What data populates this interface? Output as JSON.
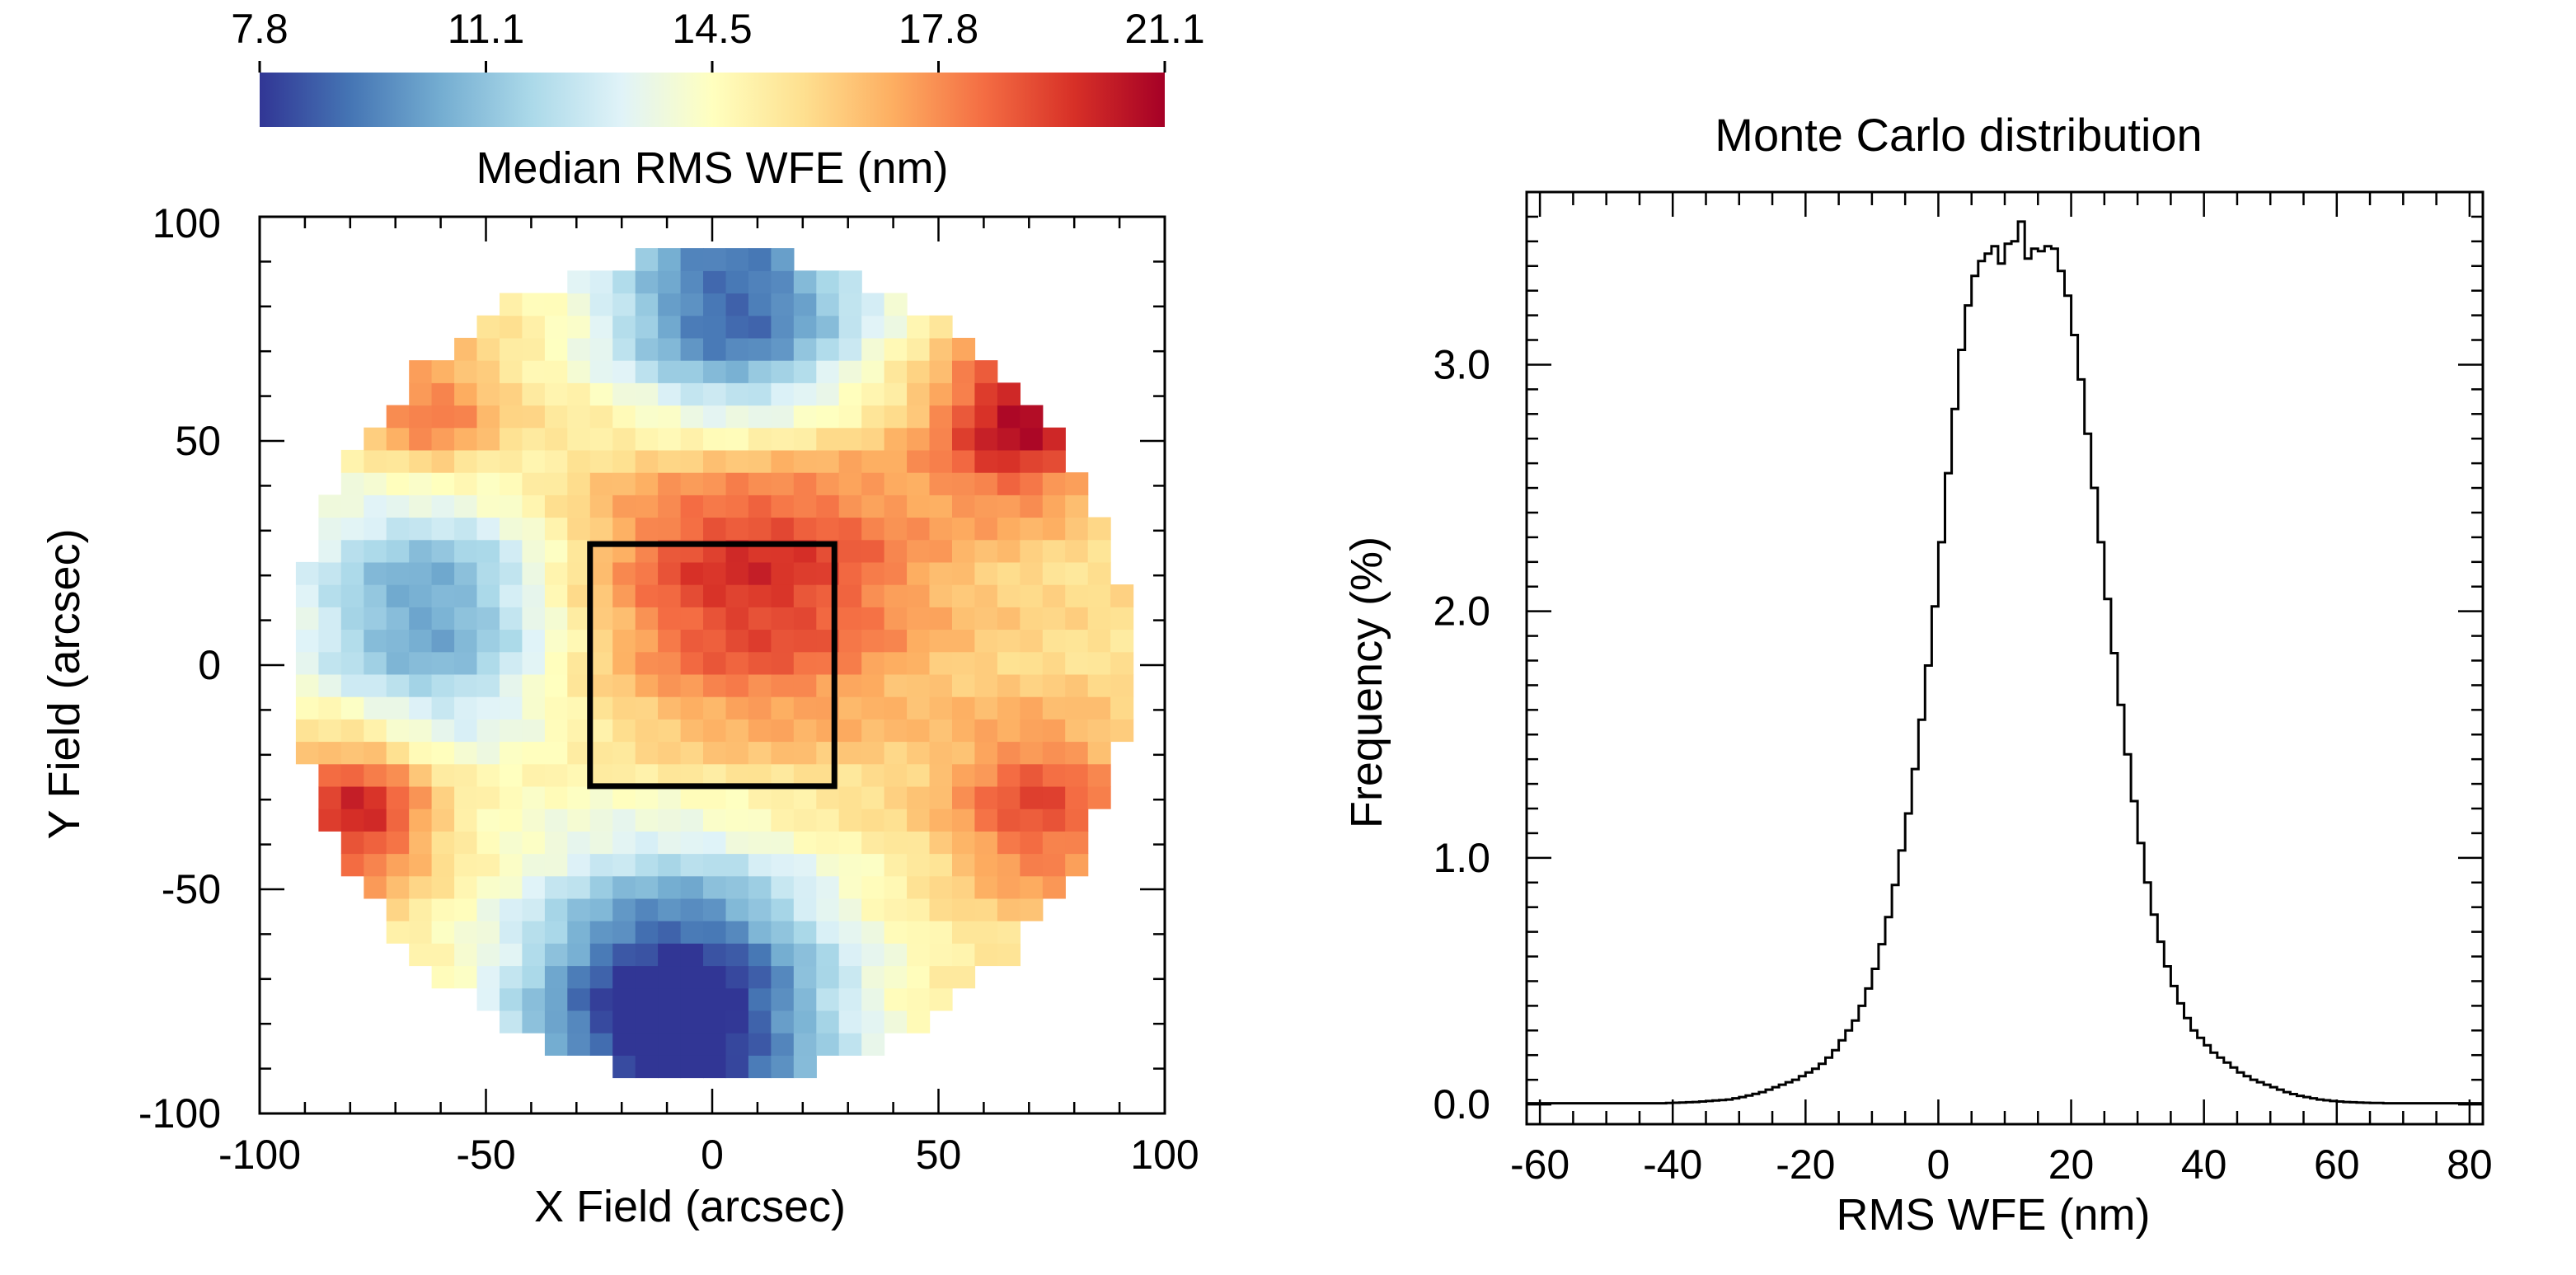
{
  "chart_data": [
    {
      "type": "heatmap",
      "title": "",
      "colorbar": {
        "label": "Median RMS WFE (nm)",
        "ticks": [
          "7.8",
          "11.1",
          "14.5",
          "17.8",
          "21.1"
        ],
        "range": [
          7.8,
          21.1
        ],
        "colormap": "RdYlBu_r",
        "colors": [
          "#313695",
          "#4575b4",
          "#74add1",
          "#abd9e9",
          "#e0f3f8",
          "#ffffbf",
          "#fee090",
          "#fdae61",
          "#f46d43",
          "#d73027",
          "#a50026"
        ]
      },
      "xlabel": "X Field (arcsec)",
      "ylabel": "Y Field (arcsec)",
      "xlim": [
        -100,
        100
      ],
      "ylim": [
        -100,
        100
      ],
      "xticks": [
        "-100",
        "-50",
        "0",
        "50",
        "100"
      ],
      "yticks": [
        "-100",
        "-50",
        "0",
        "50",
        "100"
      ],
      "field_radius_arcsec": 92,
      "cell_size_arcsec": 5,
      "overlay_box": {
        "x": [
          -27,
          27
        ],
        "y": [
          -27,
          27
        ]
      },
      "features": [
        {
          "label": "top cool region",
          "x": 5,
          "y": 78,
          "sigma": 22,
          "delta": -7.5
        },
        {
          "label": "bottom cool region",
          "x": -8,
          "y": -78,
          "sigma": 26,
          "delta": -9
        },
        {
          "label": "left cool region",
          "x": -62,
          "y": 12,
          "sigma": 22,
          "delta": -5.5
        },
        {
          "label": "central hot region",
          "x": 8,
          "y": 24,
          "sigma": 28,
          "delta": 4.5
        },
        {
          "label": "upper-right hot region",
          "x": 68,
          "y": 55,
          "sigma": 13,
          "delta": 5
        },
        {
          "label": "upper-left hot region",
          "x": -62,
          "y": 55,
          "sigma": 11,
          "delta": 3.2
        },
        {
          "label": "lower-left hot region",
          "x": -78,
          "y": -32,
          "sigma": 12,
          "delta": 5
        },
        {
          "label": "lower-right hot region",
          "x": 72,
          "y": -32,
          "sigma": 14,
          "delta": 3.5
        }
      ]
    },
    {
      "type": "bar",
      "style": "step-histogram",
      "title": "Monte Carlo distribution",
      "xlabel": "RMS WFE (nm)",
      "ylabel": "Frequency (%)",
      "xlim": [
        -62,
        82
      ],
      "ylim": [
        -0.08,
        3.7
      ],
      "xticks": [
        -60,
        -40,
        -20,
        0,
        20,
        40,
        60,
        80
      ],
      "yticks": [
        0.0,
        1.0,
        2.0,
        3.0
      ],
      "ytick_labels": [
        "0.0",
        "1.0",
        "2.0",
        "3.0"
      ],
      "bin_width": 1,
      "bin_start": -62,
      "values": [
        0.005,
        0.005,
        0.005,
        0.005,
        0.005,
        0.005,
        0.005,
        0.005,
        0.005,
        0.005,
        0.005,
        0.005,
        0.005,
        0.005,
        0.005,
        0.005,
        0.005,
        0.005,
        0.005,
        0.005,
        0.005,
        0.006,
        0.007,
        0.008,
        0.009,
        0.01,
        0.012,
        0.014,
        0.016,
        0.018,
        0.02,
        0.025,
        0.03,
        0.036,
        0.043,
        0.05,
        0.06,
        0.07,
        0.08,
        0.09,
        0.1,
        0.115,
        0.13,
        0.145,
        0.165,
        0.19,
        0.22,
        0.26,
        0.3,
        0.34,
        0.4,
        0.47,
        0.55,
        0.65,
        0.76,
        0.89,
        1.03,
        1.18,
        1.36,
        1.56,
        1.78,
        2.02,
        2.28,
        2.56,
        2.82,
        3.06,
        3.24,
        3.36,
        3.42,
        3.45,
        3.48,
        3.41,
        3.49,
        3.5,
        3.58,
        3.43,
        3.47,
        3.46,
        3.48,
        3.47,
        3.38,
        3.28,
        3.12,
        2.94,
        2.72,
        2.5,
        2.28,
        2.05,
        1.83,
        1.62,
        1.42,
        1.23,
        1.06,
        0.9,
        0.77,
        0.66,
        0.56,
        0.48,
        0.41,
        0.35,
        0.3,
        0.27,
        0.24,
        0.21,
        0.19,
        0.17,
        0.15,
        0.13,
        0.115,
        0.1,
        0.09,
        0.08,
        0.07,
        0.06,
        0.05,
        0.042,
        0.035,
        0.03,
        0.025,
        0.02,
        0.017,
        0.014,
        0.012,
        0.01,
        0.009,
        0.008,
        0.007,
        0.006,
        0.006,
        0.005,
        0.005,
        0.005,
        0.005,
        0.005,
        0.005,
        0.005,
        0.005,
        0.005,
        0.005,
        0.005,
        0.005,
        0.005,
        0.005,
        0.005
      ]
    }
  ]
}
